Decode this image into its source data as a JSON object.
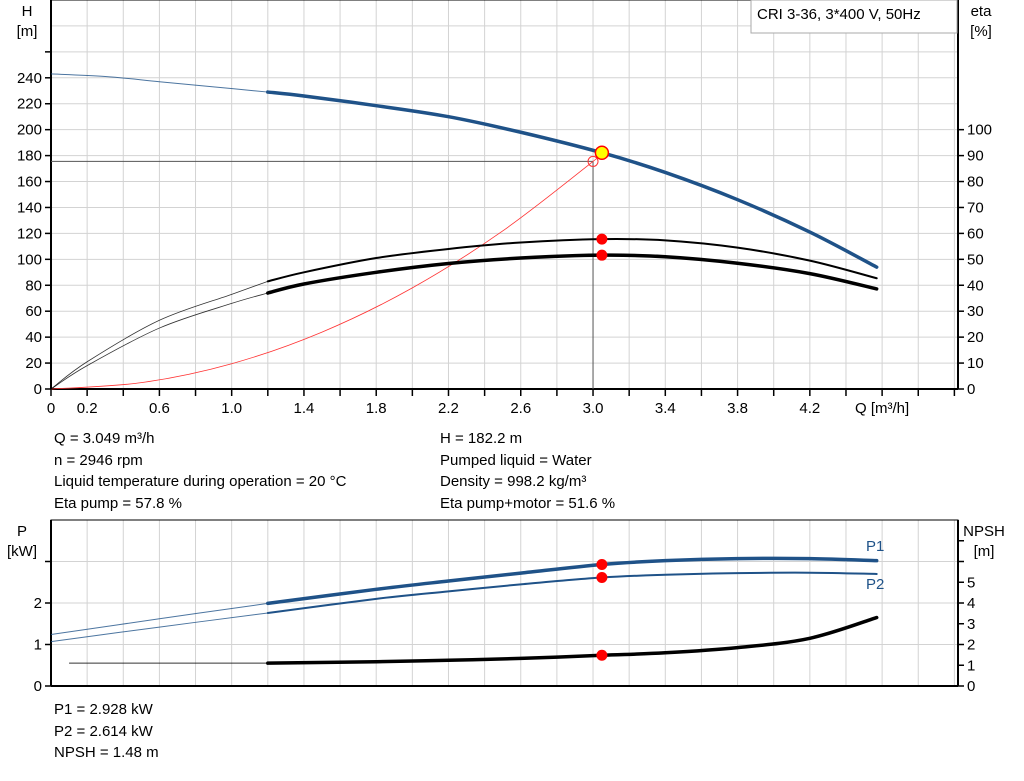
{
  "colors": {
    "head": "#1f5288",
    "power": "#1f5288",
    "efficiency": "#000000",
    "system": "#ff3333",
    "npsh": "#000000",
    "marker": "#ff0000",
    "duty_fill": "#ffff00",
    "grid": "#d3d3d3"
  },
  "chart_data": [
    {
      "type": "line",
      "title": "CRI 3-36, 3*400 V, 50Hz",
      "xlabel": "Q [m³/h]",
      "ylabel_left": [
        "H",
        "[m]"
      ],
      "ylabel_right": [
        "eta",
        "[%]"
      ],
      "xlim": [
        0,
        5.02
      ],
      "ylim_left": [
        0,
        300
      ],
      "ylim_right": [
        0,
        150
      ],
      "grid": true,
      "x_tick_labels": [
        "0",
        "0.2",
        "0.6",
        "1.0",
        "1.4",
        "1.8",
        "2.2",
        "2.6",
        "3.0",
        "3.4",
        "3.8",
        "4.2"
      ],
      "y_left_tick_labels": [
        "0",
        "20",
        "40",
        "60",
        "80",
        "100",
        "120",
        "140",
        "160",
        "180",
        "200",
        "220",
        "240"
      ],
      "y_right_tick_labels": [
        "0",
        "10",
        "20",
        "30",
        "40",
        "50",
        "60",
        "70",
        "80",
        "90",
        "100"
      ],
      "series": [
        {
          "key": "head",
          "axis": "left",
          "thin_until": 1.2,
          "points": [
            [
              0,
              243
            ],
            [
              0.3,
              241
            ],
            [
              0.6,
              237
            ],
            [
              0.9,
              233
            ],
            [
              1.2,
              229
            ],
            [
              1.4,
              226
            ],
            [
              1.8,
              218.5
            ],
            [
              2.2,
              210
            ],
            [
              2.6,
              198
            ],
            [
              3.049,
              182.2
            ],
            [
              3.4,
              167
            ],
            [
              3.8,
              146
            ],
            [
              4.2,
              121
            ],
            [
              4.57,
              94
            ]
          ]
        },
        {
          "key": "eta_pump",
          "axis": "right",
          "thin_until": 1.2,
          "points": [
            [
              0,
              0
            ],
            [
              0.2,
              10.5
            ],
            [
              0.6,
              26.5
            ],
            [
              1.0,
              36.5
            ],
            [
              1.2,
              41.5
            ],
            [
              1.4,
              45
            ],
            [
              1.8,
              50.5
            ],
            [
              2.2,
              54
            ],
            [
              2.6,
              56.5
            ],
            [
              3.049,
              57.8
            ],
            [
              3.4,
              57.3
            ],
            [
              3.8,
              54.5
            ],
            [
              4.2,
              49.5
            ],
            [
              4.57,
              42.7
            ]
          ]
        },
        {
          "key": "eta_pump_motor",
          "axis": "right",
          "thin_until": 1.2,
          "points": [
            [
              0,
              0
            ],
            [
              0.2,
              9
            ],
            [
              0.6,
              23.5
            ],
            [
              1.0,
              33
            ],
            [
              1.2,
              37
            ],
            [
              1.4,
              40.5
            ],
            [
              1.8,
              45
            ],
            [
              2.2,
              48.4
            ],
            [
              2.6,
              50.5
            ],
            [
              3.049,
              51.6
            ],
            [
              3.4,
              51
            ],
            [
              3.8,
              48.5
            ],
            [
              4.2,
              44.5
            ],
            [
              4.57,
              38.6
            ]
          ]
        },
        {
          "key": "system",
          "axis": "left",
          "points": [
            [
              0,
              0
            ],
            [
              0.5,
              4.9
            ],
            [
              1.0,
              19.5
            ],
            [
              1.5,
              43.9
            ],
            [
              2.0,
              78
            ],
            [
              2.5,
              121.9
            ],
            [
              3.0,
              175.5
            ],
            [
              3.049,
              182.2
            ]
          ]
        }
      ],
      "duty_point": {
        "q": 3.049,
        "h": 182.2,
        "eta_pump": 57.8,
        "eta_pump_motor": 51.6
      },
      "reference_point": {
        "q": 3.0,
        "h": 175.5
      }
    },
    {
      "type": "line",
      "xlim": [
        0,
        5.02
      ],
      "ylabel_left": [
        "P",
        "[kW]"
      ],
      "ylabel_right": [
        "NPSH",
        "[m]"
      ],
      "ylim_left": [
        0,
        4
      ],
      "ylim_right": [
        0,
        8
      ],
      "grid": true,
      "y_left_tick_labels": [
        "0",
        "1",
        "2"
      ],
      "y_right_tick_labels": [
        "0",
        "1",
        "2",
        "3",
        "4",
        "5"
      ],
      "series": [
        {
          "key": "p1",
          "name": "P1",
          "axis": "left",
          "thin_until": 1.2,
          "points": [
            [
              0,
              1.24
            ],
            [
              0.6,
              1.62
            ],
            [
              1.2,
              1.99
            ],
            [
              1.8,
              2.33
            ],
            [
              2.2,
              2.53
            ],
            [
              2.6,
              2.72
            ],
            [
              3.049,
              2.928
            ],
            [
              3.4,
              3.02
            ],
            [
              3.8,
              3.07
            ],
            [
              4.2,
              3.07
            ],
            [
              4.57,
              3.02
            ]
          ]
        },
        {
          "key": "p2",
          "name": "P2",
          "axis": "left",
          "thin_until": 1.2,
          "points": [
            [
              0,
              1.07
            ],
            [
              0.6,
              1.42
            ],
            [
              1.2,
              1.76
            ],
            [
              1.8,
              2.1
            ],
            [
              2.2,
              2.28
            ],
            [
              2.6,
              2.45
            ],
            [
              3.049,
              2.614
            ],
            [
              3.4,
              2.68
            ],
            [
              3.8,
              2.72
            ],
            [
              4.2,
              2.73
            ],
            [
              4.57,
              2.7
            ]
          ]
        },
        {
          "key": "npsh",
          "axis": "right",
          "thin_until": 1.2,
          "points": [
            [
              0.1,
              1.1
            ],
            [
              1.2,
              1.1
            ],
            [
              1.8,
              1.17
            ],
            [
              2.2,
              1.24
            ],
            [
              2.6,
              1.33
            ],
            [
              3.049,
              1.48
            ],
            [
              3.4,
              1.6
            ],
            [
              3.8,
              1.85
            ],
            [
              4.2,
              2.3
            ],
            [
              4.57,
              3.3
            ]
          ]
        }
      ],
      "duty_point": {
        "q": 3.049,
        "p1": 2.928,
        "p2": 2.614,
        "npsh": 1.48
      }
    }
  ],
  "info_top_left": [
    "Q = 3.049 m³/h",
    "n = 2946 rpm",
    "Liquid temperature during operation = 20 °C",
    "Eta pump = 57.8 %"
  ],
  "info_top_right": [
    "H = 182.2 m",
    "Pumped liquid = Water",
    "Density = 998.2 kg/m³",
    "Eta pump+motor = 51.6 %"
  ],
  "info_bottom": [
    "P1 = 2.928 kW",
    "P2 = 2.614 kW",
    "NPSH = 1.48 m"
  ]
}
